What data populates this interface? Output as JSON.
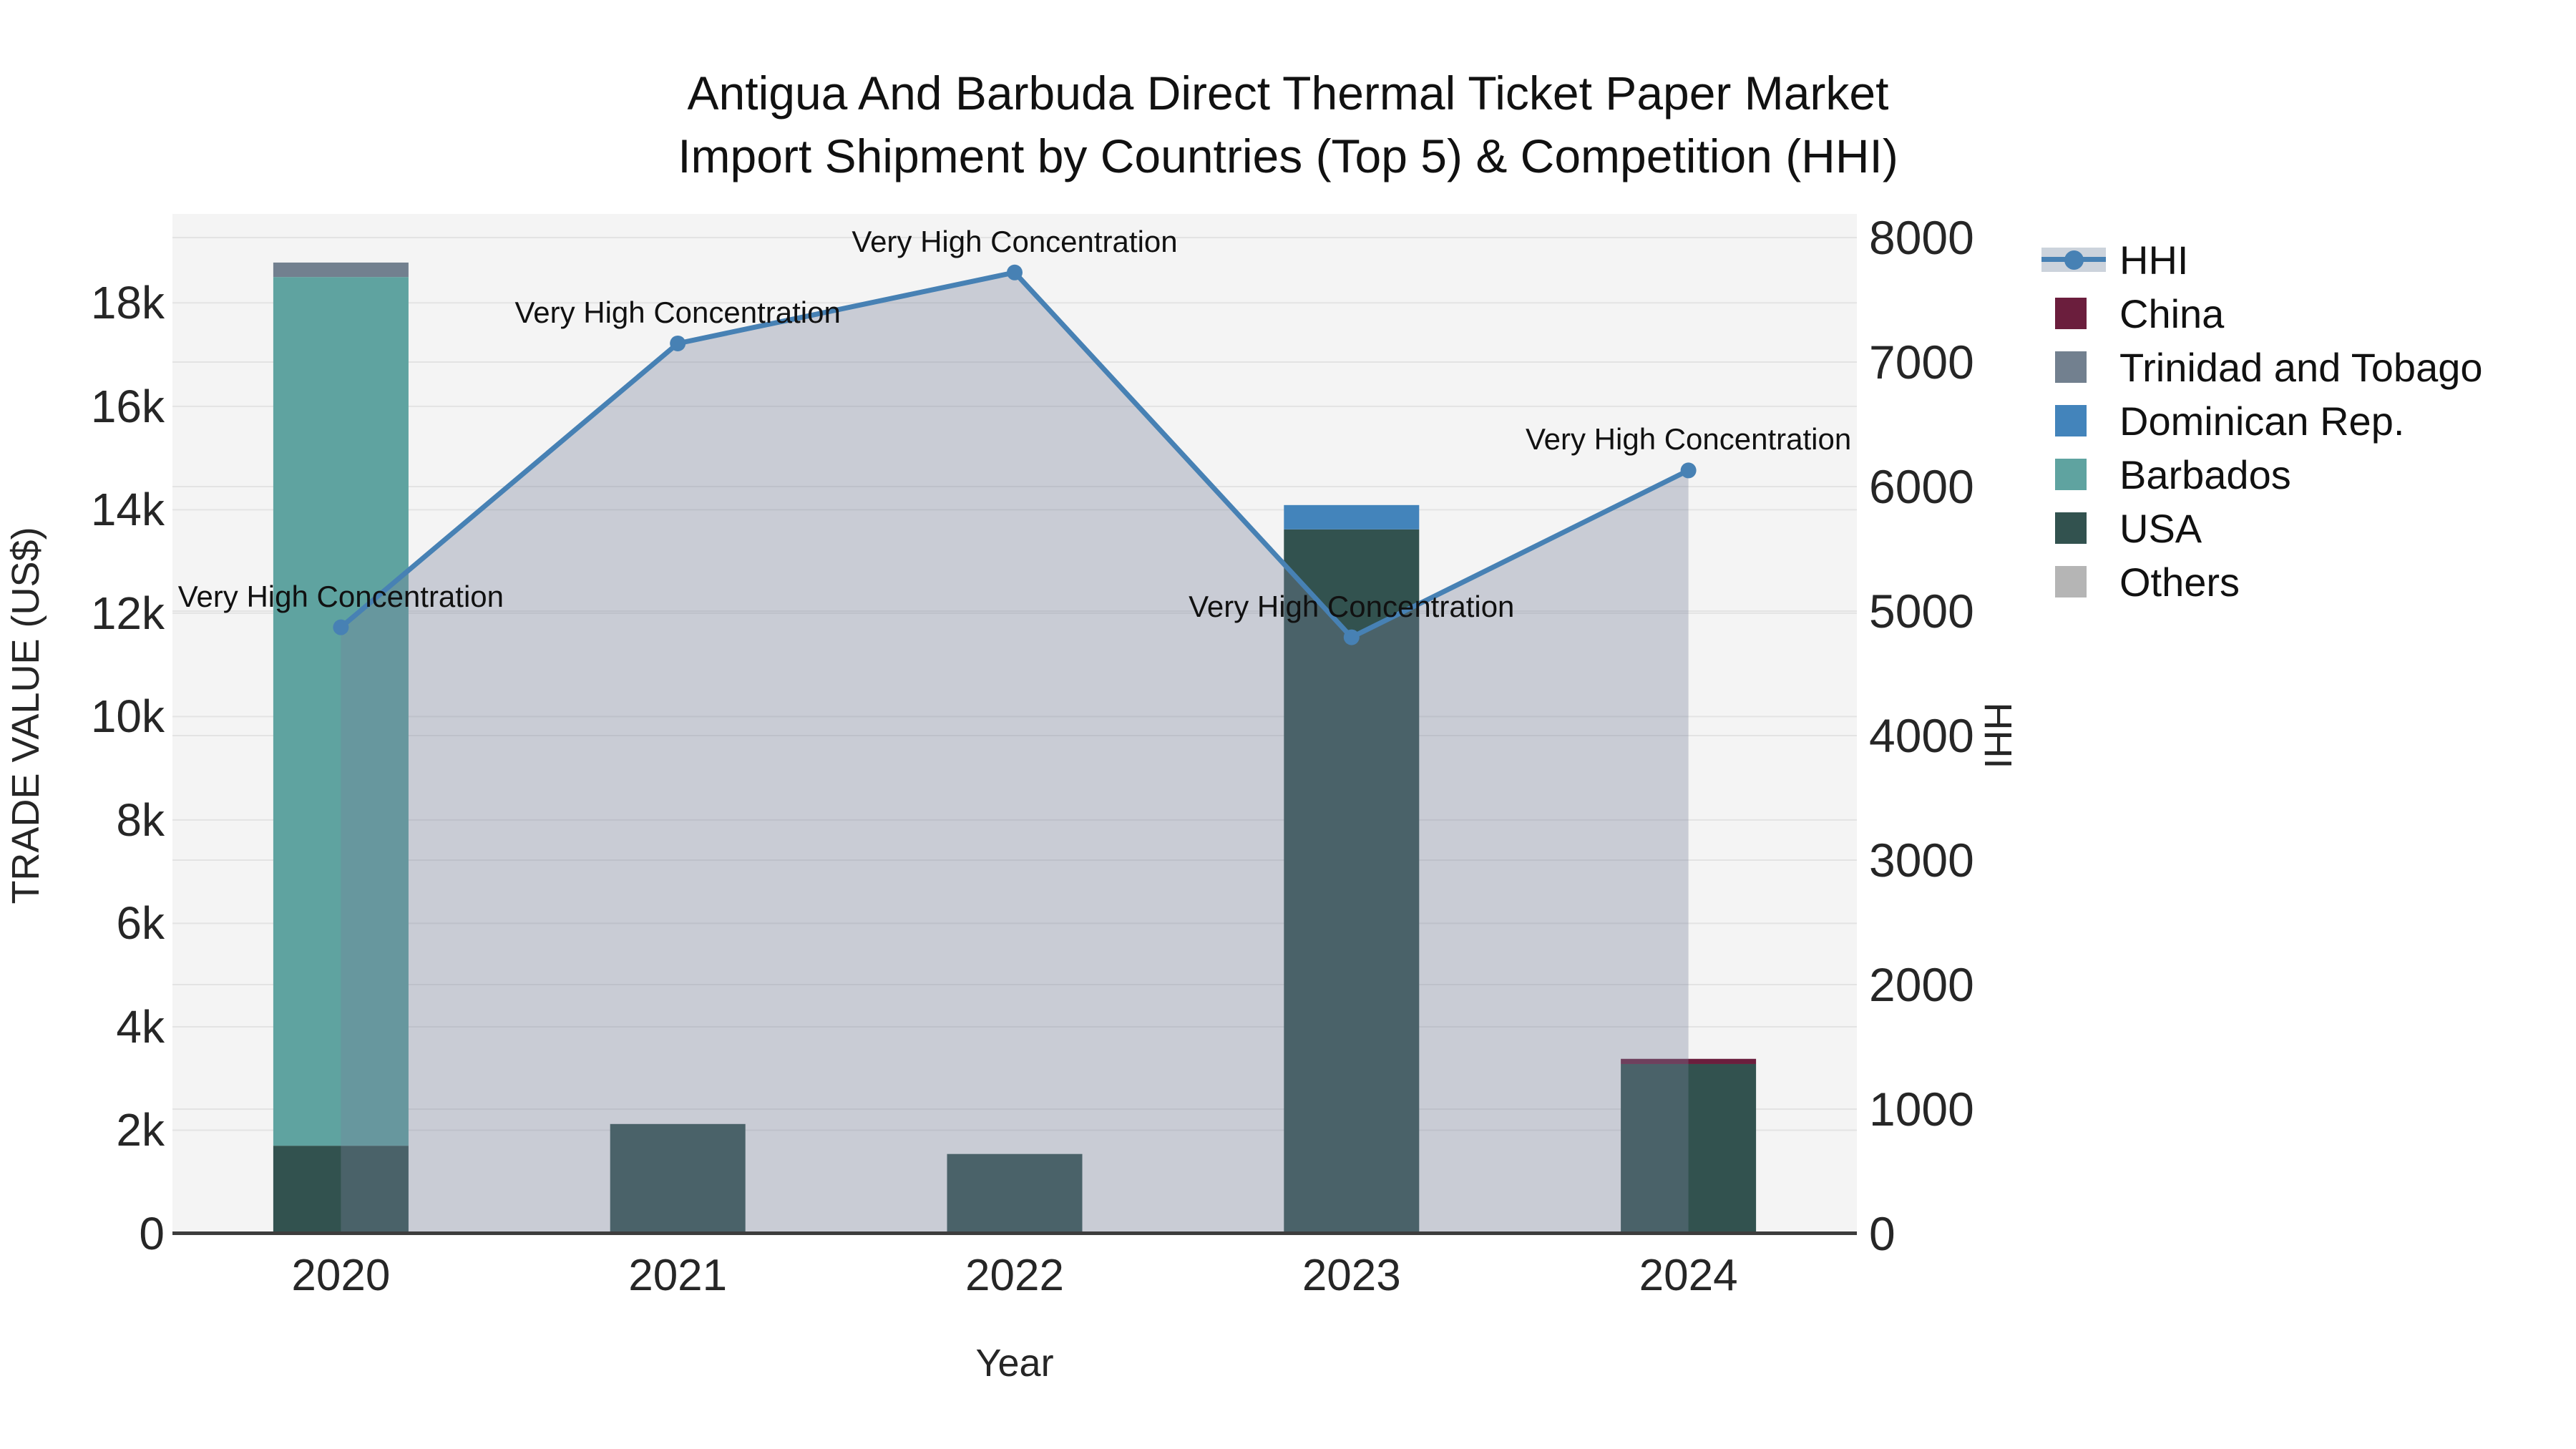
{
  "title": {
    "line1": "Antigua And Barbuda Direct Thermal Ticket Paper Market",
    "line2": "Import Shipment by Countries (Top 5) & Competition (HHI)"
  },
  "colors": {
    "figure_bg": "#ffffff",
    "plot_bg": "#f4f4f4",
    "grid": "#e3e3e3",
    "axis_line": "#3d3d3d",
    "text": "#1f1f1f"
  },
  "chart_data": {
    "type": "composite",
    "chart_types": [
      "stacked-bar",
      "line-area"
    ],
    "categories": [
      "2020",
      "2021",
      "2022",
      "2023",
      "2024"
    ],
    "bar_unit": "US$",
    "series": [
      {
        "name": "China",
        "color": "#6b1e3d",
        "values": [
          0,
          0,
          0,
          0,
          100
        ]
      },
      {
        "name": "Trinidad and Tobago",
        "color": "#72808f",
        "values": [
          280,
          0,
          0,
          0,
          0
        ]
      },
      {
        "name": "Dominican Rep.",
        "color": "#4384bb",
        "values": [
          0,
          0,
          0,
          470,
          0
        ]
      },
      {
        "name": "Barbados",
        "color": "#5fa3a0",
        "values": [
          16800,
          0,
          0,
          0,
          0
        ]
      },
      {
        "name": "USA",
        "color": "#32524f",
        "values": [
          1700,
          2120,
          1540,
          13620,
          3280
        ]
      },
      {
        "name": "Others",
        "color": "#b5b5b5",
        "values": [
          0,
          0,
          0,
          0,
          0
        ]
      }
    ],
    "stack_order_bottom_to_top": [
      "Others",
      "USA",
      "Barbados",
      "Dominican Rep.",
      "Trinidad and Tobago",
      "China"
    ],
    "line_series": {
      "name": "HHI",
      "color": "#4781b4",
      "fill_color": "rgba(121,130,155,0.35)",
      "values": [
        4870,
        7150,
        7720,
        4790,
        6130
      ]
    },
    "annotations": [
      {
        "x": "2020",
        "text": "Very High Concentration"
      },
      {
        "x": "2021",
        "text": "Very High Concentration"
      },
      {
        "x": "2022",
        "text": "Very High Concentration"
      },
      {
        "x": "2023",
        "text": "Very High Concentration"
      },
      {
        "x": "2024",
        "text": "Very High Concentration"
      }
    ],
    "left_axis": {
      "title": "TRADE VALUE (US$)",
      "tick_labels": [
        "0",
        "2k",
        "4k",
        "6k",
        "8k",
        "10k",
        "12k",
        "14k",
        "16k",
        "18k"
      ],
      "tick_values": [
        0,
        2000,
        4000,
        6000,
        8000,
        10000,
        12000,
        14000,
        16000,
        18000
      ],
      "range": [
        0,
        19720
      ]
    },
    "right_axis": {
      "title": "HHI",
      "tick_labels": [
        "0",
        "1000",
        "2000",
        "3000",
        "4000",
        "5000",
        "6000",
        "7000",
        "8000"
      ],
      "tick_values": [
        0,
        1000,
        2000,
        3000,
        4000,
        5000,
        6000,
        7000,
        8000
      ],
      "range": [
        0,
        8190
      ]
    },
    "x_axis": {
      "title": "Year"
    },
    "grid": true,
    "legend": {
      "position": "right",
      "items": [
        {
          "label": "HHI",
          "type": "line",
          "color": "#4781b4"
        },
        {
          "label": "China",
          "type": "square",
          "color": "#6b1e3d"
        },
        {
          "label": "Trinidad and Tobago",
          "type": "square",
          "color": "#72808f"
        },
        {
          "label": "Dominican Rep.",
          "type": "square",
          "color": "#4384bb"
        },
        {
          "label": "Barbados",
          "type": "square",
          "color": "#5fa3a0"
        },
        {
          "label": "USA",
          "type": "square",
          "color": "#32524f"
        },
        {
          "label": "Others",
          "type": "square",
          "color": "#b5b5b5"
        }
      ]
    }
  }
}
